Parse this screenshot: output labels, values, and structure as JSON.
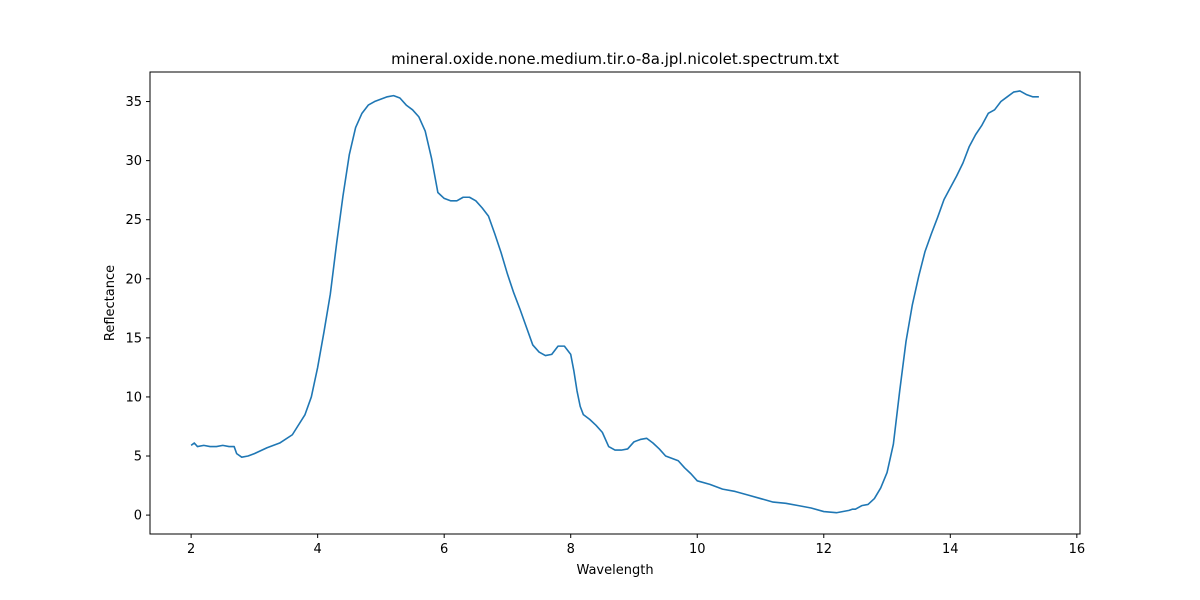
{
  "chart_data": {
    "type": "line",
    "title": "mineral.oxide.none.medium.tir.o-8a.jpl.nicolet.spectrum.txt",
    "xlabel": "Wavelength",
    "ylabel": "Reflectance",
    "xlim": [
      1.35,
      16.05
    ],
    "ylim": [
      -1.6,
      37.5
    ],
    "xticks": [
      2,
      4,
      6,
      8,
      10,
      12,
      14,
      16
    ],
    "yticks": [
      0,
      5,
      10,
      15,
      20,
      25,
      30,
      35
    ],
    "grid": false,
    "series": [
      {
        "color": "#1f77b4",
        "x": [
          2.0,
          2.05,
          2.1,
          2.2,
          2.3,
          2.4,
          2.5,
          2.6,
          2.68,
          2.72,
          2.8,
          2.9,
          3.0,
          3.2,
          3.4,
          3.6,
          3.8,
          3.9,
          4.0,
          4.1,
          4.2,
          4.3,
          4.4,
          4.5,
          4.6,
          4.7,
          4.8,
          4.9,
          5.0,
          5.1,
          5.2,
          5.3,
          5.4,
          5.5,
          5.6,
          5.7,
          5.8,
          5.9,
          6.0,
          6.1,
          6.2,
          6.3,
          6.4,
          6.5,
          6.6,
          6.7,
          6.8,
          6.9,
          7.0,
          7.1,
          7.2,
          7.3,
          7.4,
          7.5,
          7.6,
          7.7,
          7.8,
          7.9,
          8.0,
          8.05,
          8.1,
          8.15,
          8.2,
          8.3,
          8.4,
          8.5,
          8.6,
          8.7,
          8.8,
          8.9,
          9.0,
          9.1,
          9.2,
          9.3,
          9.4,
          9.5,
          9.6,
          9.7,
          9.8,
          9.9,
          10.0,
          10.2,
          10.4,
          10.6,
          10.8,
          11.0,
          11.2,
          11.4,
          11.6,
          11.8,
          12.0,
          12.2,
          12.4,
          12.45,
          12.5,
          12.6,
          12.7,
          12.8,
          12.9,
          13.0,
          13.1,
          13.2,
          13.3,
          13.4,
          13.5,
          13.6,
          13.7,
          13.8,
          13.9,
          14.0,
          14.1,
          14.2,
          14.3,
          14.4,
          14.5,
          14.6,
          14.7,
          14.8,
          14.9,
          15.0,
          15.1,
          15.2,
          15.3,
          15.4
        ],
        "y": [
          5.9,
          6.1,
          5.8,
          5.9,
          5.8,
          5.8,
          5.9,
          5.8,
          5.8,
          5.2,
          4.9,
          5.0,
          5.2,
          5.7,
          6.1,
          6.8,
          8.5,
          10.0,
          12.5,
          15.5,
          18.7,
          23.0,
          27.0,
          30.5,
          32.8,
          34.0,
          34.7,
          35.0,
          35.2,
          35.4,
          35.5,
          35.3,
          34.7,
          34.3,
          33.7,
          32.5,
          30.2,
          27.3,
          26.8,
          26.6,
          26.6,
          26.9,
          26.9,
          26.6,
          26.0,
          25.3,
          23.8,
          22.2,
          20.4,
          18.8,
          17.4,
          15.9,
          14.4,
          13.8,
          13.5,
          13.6,
          14.3,
          14.3,
          13.6,
          12.2,
          10.5,
          9.2,
          8.5,
          8.1,
          7.6,
          7.0,
          5.8,
          5.5,
          5.5,
          5.6,
          6.2,
          6.4,
          6.5,
          6.1,
          5.6,
          5.0,
          4.8,
          4.6,
          4.0,
          3.5,
          2.9,
          2.6,
          2.2,
          2.0,
          1.7,
          1.4,
          1.1,
          1.0,
          0.8,
          0.6,
          0.3,
          0.2,
          0.4,
          0.5,
          0.5,
          0.8,
          0.9,
          1.4,
          2.3,
          3.6,
          6.0,
          10.5,
          14.7,
          17.8,
          20.2,
          22.3,
          23.8,
          25.2,
          26.7,
          27.7,
          28.7,
          29.8,
          31.2,
          32.2,
          33.0,
          34.0,
          34.3,
          35.0,
          35.4,
          35.8,
          35.9,
          35.6,
          35.4,
          35.4
        ]
      }
    ]
  }
}
